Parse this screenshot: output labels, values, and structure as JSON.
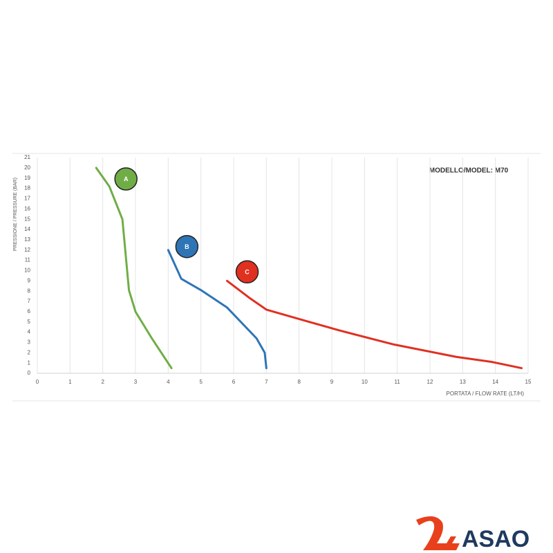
{
  "chart_data": {
    "type": "line",
    "title": "MODELLO/MODEL: M70",
    "x_label": "PORTATA / FLOW RATE (LT/H)",
    "y_label": "PRESSIONE / PRESSURE (BAR)",
    "xlim": [
      0,
      15
    ],
    "ylim": [
      0,
      21
    ],
    "xticks": [
      0,
      1,
      2,
      3,
      4,
      5,
      6,
      7,
      8,
      9,
      10,
      11,
      12,
      13,
      14,
      15
    ],
    "yticks": [
      0,
      1,
      2,
      3,
      4,
      5,
      6,
      7,
      8,
      9,
      10,
      11,
      12,
      13,
      14,
      15,
      16,
      17,
      18,
      19,
      20,
      21
    ],
    "grid": "x",
    "series": [
      {
        "name": "A",
        "color": "#70ad47",
        "x": [
          1.8,
          2.2,
          2.6,
          2.8,
          3.0,
          3.5,
          4.1
        ],
        "values": [
          20,
          18.2,
          15,
          8.1,
          6,
          3.4,
          0.5
        ]
      },
      {
        "name": "B",
        "color": "#2e75b6",
        "x": [
          4.0,
          4.4,
          5.0,
          5.8,
          6.7,
          6.95,
          7.0
        ],
        "values": [
          12,
          9.2,
          8.1,
          6.4,
          3.4,
          2,
          0.5
        ]
      },
      {
        "name": "C",
        "color": "#e03020",
        "x": [
          5.8,
          6.5,
          7.0,
          8.2,
          9.2,
          10.9,
          12.8,
          13.9,
          14.8
        ],
        "values": [
          9,
          7.3,
          6.2,
          5.1,
          4.2,
          2.8,
          1.6,
          1.1,
          0.5
        ]
      }
    ]
  },
  "brand": "ASAO"
}
